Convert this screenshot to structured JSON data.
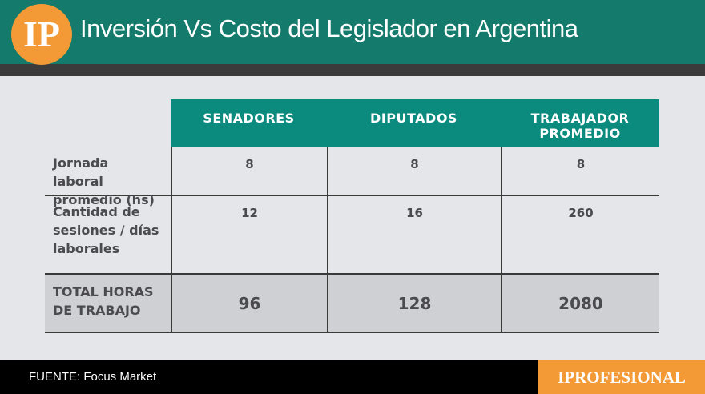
{
  "header": {
    "logo": "IP",
    "title": "Inversión Vs Costo del Legislador en Argentina"
  },
  "table": {
    "columns": [
      "SENADORES",
      "DIPUTADOS",
      "TRABAJADOR PROMEDIO"
    ],
    "rows": [
      {
        "label": "Jornada laboral promedio (hs)",
        "values": [
          8,
          8,
          8
        ]
      },
      {
        "label": "Cantidad de sesiones / días laborales",
        "values": [
          12,
          16,
          260
        ]
      },
      {
        "label": "TOTAL HORAS DE TRABAJO",
        "values": [
          96,
          128,
          2080
        ]
      }
    ]
  },
  "footer": {
    "source": "FUENTE: Focus Market",
    "brand": "IPROFESIONAL"
  }
}
